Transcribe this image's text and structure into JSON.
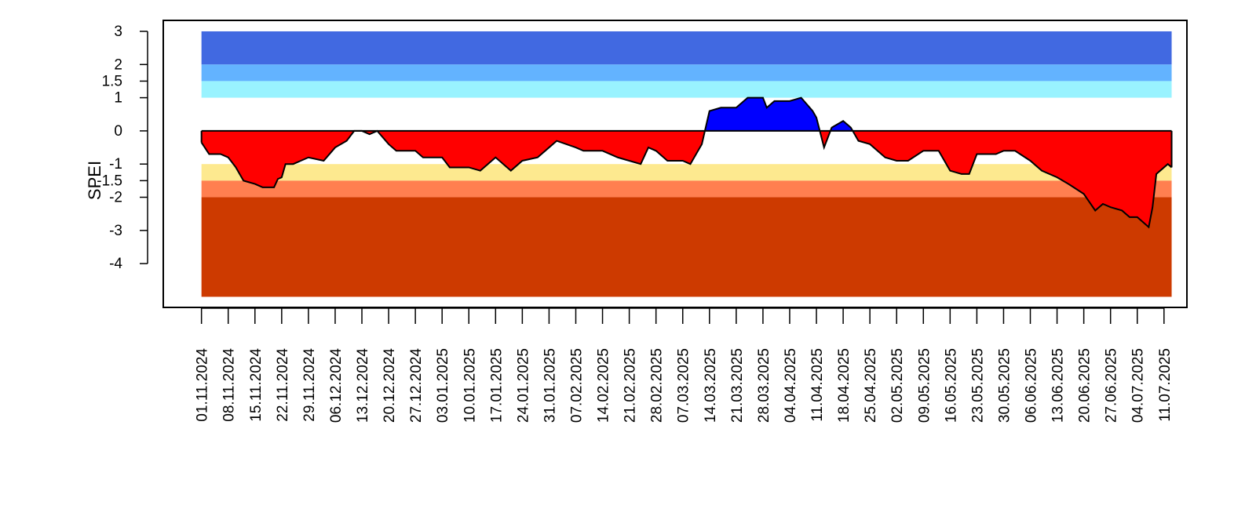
{
  "chart_data": {
    "type": "area",
    "y_label": "SPEI",
    "x": [
      "01.11.2024",
      "03.11.2024",
      "06.11.2024",
      "08.11.2024",
      "10.11.2024",
      "12.11.2024",
      "15.11.2024",
      "17.11.2024",
      "20.11.2024",
      "21.11.2024",
      "22.11.2024",
      "23.11.2024",
      "25.11.2024",
      "29.11.2024",
      "03.12.2024",
      "06.12.2024",
      "09.12.2024",
      "11.12.2024",
      "13.12.2024",
      "15.12.2024",
      "17.12.2024",
      "20.12.2024",
      "22.12.2024",
      "27.12.2024",
      "29.12.2024",
      "03.01.2025",
      "05.01.2025",
      "10.01.2025",
      "13.01.2025",
      "17.01.2025",
      "21.01.2025",
      "24.01.2025",
      "28.01.2025",
      "31.01.2025",
      "02.02.2025",
      "07.02.2025",
      "09.02.2025",
      "14.02.2025",
      "18.02.2025",
      "21.02.2025",
      "24.02.2025",
      "26.02.2025",
      "28.02.2025",
      "03.03.2025",
      "07.03.2025",
      "09.03.2025",
      "12.03.2025",
      "14.03.2025",
      "17.03.2025",
      "21.03.2025",
      "24.03.2025",
      "28.03.2025",
      "29.03.2025",
      "31.03.2025",
      "04.04.2025",
      "07.04.2025",
      "10.04.2025",
      "11.04.2025",
      "13.04.2025",
      "15.04.2025",
      "18.04.2025",
      "20.04.2025",
      "22.04.2025",
      "25.04.2025",
      "29.04.2025",
      "02.05.2025",
      "05.05.2025",
      "09.05.2025",
      "13.05.2025",
      "16.05.2025",
      "19.05.2025",
      "21.05.2025",
      "23.05.2025",
      "28.05.2025",
      "30.05.2025",
      "02.06.2025",
      "06.06.2025",
      "09.06.2025",
      "13.06.2025",
      "16.06.2025",
      "20.06.2025",
      "23.06.2025",
      "25.06.2025",
      "27.06.2025",
      "30.06.2025",
      "02.07.2025",
      "04.07.2025",
      "07.07.2025",
      "08.07.2025",
      "09.07.2025",
      "11.07.2025",
      "12.07.2025",
      "13.07.2025"
    ],
    "values": [
      -0.35,
      -0.7,
      -0.7,
      -0.8,
      -1.1,
      -1.5,
      -1.6,
      -1.7,
      -1.7,
      -1.45,
      -1.4,
      -1.0,
      -1.0,
      -0.8,
      -0.9,
      -0.5,
      -0.3,
      0.0,
      0.0,
      -0.1,
      0.0,
      -0.4,
      -0.6,
      -0.6,
      -0.8,
      -0.8,
      -1.1,
      -1.1,
      -1.2,
      -0.8,
      -1.2,
      -0.9,
      -0.8,
      -0.5,
      -0.3,
      -0.5,
      -0.6,
      -0.6,
      -0.8,
      -0.9,
      -1.0,
      -0.5,
      -0.6,
      -0.9,
      -0.9,
      -1.0,
      -0.4,
      0.6,
      0.7,
      0.7,
      1.0,
      1.0,
      0.7,
      0.9,
      0.9,
      1.0,
      0.6,
      0.4,
      -0.5,
      0.1,
      0.3,
      0.1,
      -0.3,
      -0.4,
      -0.8,
      -0.9,
      -0.9,
      -0.6,
      -0.6,
      -1.2,
      -1.3,
      -1.3,
      -0.7,
      -0.7,
      -0.6,
      -0.6,
      -0.9,
      -1.2,
      -1.4,
      -1.6,
      -1.9,
      -2.4,
      -2.2,
      -2.3,
      -2.4,
      -2.6,
      -2.6,
      -2.9,
      -2.3,
      -1.3,
      -1.1,
      -1.0,
      -1.1
    ],
    "positive_color": "#0000ff",
    "negative_color": "#ff0000",
    "bands": [
      {
        "from": 2,
        "to": 3,
        "color": "#4169e1"
      },
      {
        "from": 1.5,
        "to": 2,
        "color": "#63b3ff"
      },
      {
        "from": 1,
        "to": 1.5,
        "color": "#99f3ff"
      },
      {
        "from": -1.5,
        "to": -1,
        "color": "#fde98f"
      },
      {
        "from": -2,
        "to": -1.5,
        "color": "#ff7f50"
      },
      {
        "from": -5,
        "to": -2,
        "color": "#cd3a00"
      }
    ],
    "xlim": [
      "22.10.2024",
      "17.07.2025"
    ],
    "ylim": [
      -5.32,
      3.33
    ],
    "yticks": [
      3,
      2,
      1.5,
      1,
      0,
      -1,
      -1.5,
      -2,
      -3,
      -4
    ],
    "xticks": [
      "01.11.2024",
      "08.11.2024",
      "15.11.2024",
      "22.11.2024",
      "29.11.2024",
      "06.12.2024",
      "13.12.2024",
      "20.12.2024",
      "27.12.2024",
      "03.01.2025",
      "10.01.2025",
      "17.01.2025",
      "24.01.2025",
      "31.01.2025",
      "07.02.2025",
      "14.02.2025",
      "21.02.2025",
      "28.02.2025",
      "07.03.2025",
      "14.03.2025",
      "21.03.2025",
      "28.03.2025",
      "04.04.2025",
      "11.04.2025",
      "18.04.2025",
      "25.04.2025",
      "02.05.2025",
      "09.05.2025",
      "16.05.2025",
      "23.05.2025",
      "30.05.2025",
      "06.06.2025",
      "13.06.2025",
      "20.06.2025",
      "27.06.2025",
      "04.07.2025",
      "11.07.2025"
    ]
  }
}
